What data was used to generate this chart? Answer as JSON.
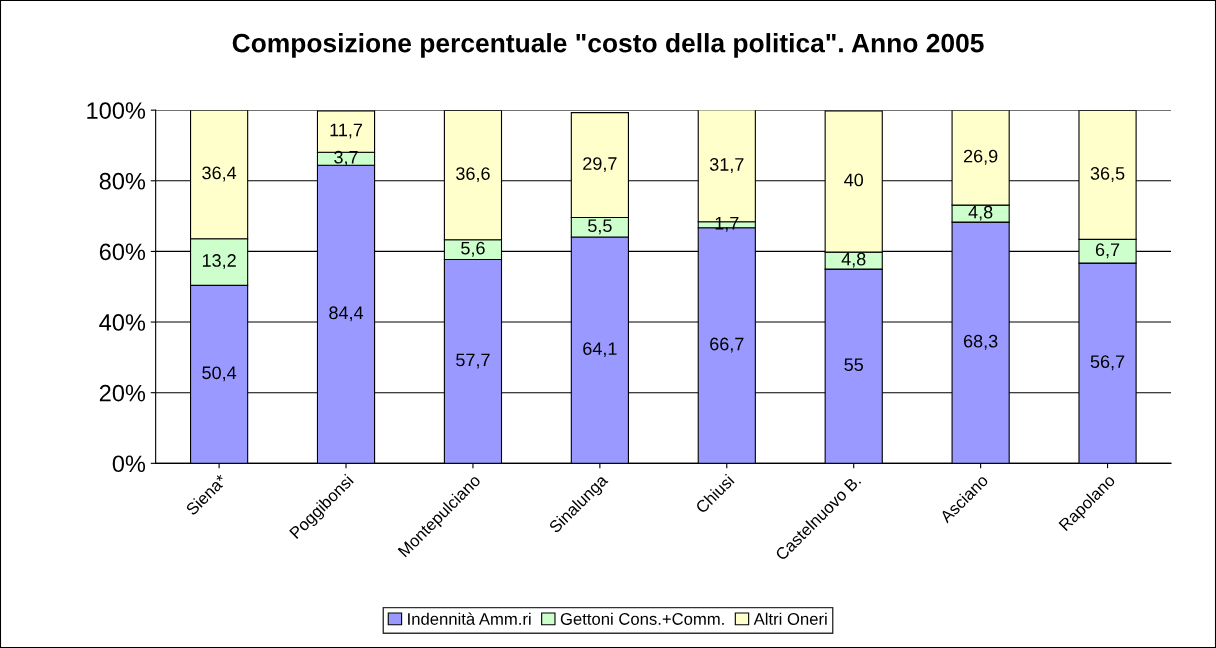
{
  "chart_data": {
    "type": "bar",
    "title": "Composizione percentuale \"costo della politica\". Anno 2005",
    "categories": [
      "Siena*",
      "Poggibonsi",
      "Montepulciano",
      "Sinalunga",
      "Chiusi",
      "Castelnuovo B.",
      "Asciano",
      "Rapolano"
    ],
    "stacked": true,
    "series": [
      {
        "name": "Indennità Amm.ri",
        "color": "#9999ff",
        "values": [
          50.4,
          84.4,
          57.7,
          64.1,
          66.7,
          55,
          68.3,
          56.7
        ],
        "value_labels": [
          "50,4",
          "84,4",
          "57,7",
          "64,1",
          "66,7",
          "55",
          "68,3",
          "56,7"
        ]
      },
      {
        "name": "Gettoni Cons.+Comm.",
        "color": "#ccffcc",
        "values": [
          13.2,
          3.7,
          5.6,
          5.5,
          1.7,
          4.8,
          4.8,
          6.7
        ],
        "value_labels": [
          "13,2",
          "3,7",
          "5,6",
          "5,5",
          "1,7",
          "4,8",
          "4,8",
          "6,7"
        ]
      },
      {
        "name": "Altri Oneri",
        "color": "#ffffcc",
        "values": [
          36.4,
          11.7,
          36.6,
          29.7,
          31.7,
          40,
          26.9,
          36.5
        ],
        "value_labels": [
          "36,4",
          "11,7",
          "36,6",
          "29,7",
          "31,7",
          "40",
          "26,9",
          "36,5"
        ]
      }
    ],
    "ylim": [
      0,
      100
    ],
    "yticks": [
      {
        "value": 0,
        "label": "0%"
      },
      {
        "value": 20,
        "label": "20%"
      },
      {
        "value": 40,
        "label": "40%"
      },
      {
        "value": 60,
        "label": "60%"
      },
      {
        "value": 80,
        "label": "80%"
      },
      {
        "value": 100,
        "label": "100%"
      }
    ],
    "grid": "y",
    "legend": "bottom"
  }
}
